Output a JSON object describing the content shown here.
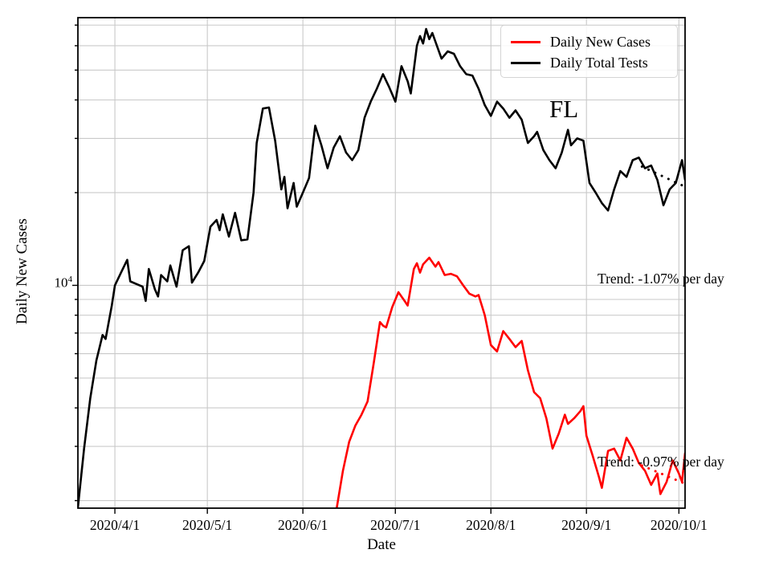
{
  "chart_data": {
    "type": "line",
    "title": "",
    "xlabel": "Date",
    "ylabel": "Daily New Cases",
    "yscale": "log",
    "grid": "both",
    "xlim": [
      "2020/3/20",
      "2020/10/3"
    ],
    "ylim": [
      1890,
      74000
    ],
    "y_tick": {
      "base": "10",
      "exp": "4",
      "value": 10000
    },
    "y_gridlines": [
      2000,
      3000,
      4000,
      5000,
      6000,
      7000,
      8000,
      9000,
      10000,
      20000,
      30000,
      40000,
      50000,
      60000,
      70000
    ],
    "x_ticks": [
      "2020/4/1",
      "2020/5/1",
      "2020/6/1",
      "2020/7/1",
      "2020/8/1",
      "2020/9/1",
      "2020/10/1"
    ],
    "legend": {
      "position": "upper right",
      "items": [
        {
          "label": "Daily New Cases",
          "color": "#ff0000"
        },
        {
          "label": "Daily Total Tests",
          "color": "#000000"
        }
      ]
    },
    "annotations": {
      "region": "FL",
      "tests_trend": "Trend: -1.07% per day",
      "cases_trend": "Trend: -0.97% per day"
    },
    "series": [
      {
        "name": "Daily Total Tests",
        "color": "#000000",
        "style": "solid",
        "points": [
          [
            "2020/3/20",
            1900
          ],
          [
            "2020/3/22",
            2950
          ],
          [
            "2020/3/24",
            4300
          ],
          [
            "2020/3/26",
            5700
          ],
          [
            "2020/3/28",
            6900
          ],
          [
            "2020/3/29",
            6700
          ],
          [
            "2020/3/31",
            8600
          ],
          [
            "2020/4/1",
            10000
          ],
          [
            "2020/4/3",
            11000
          ],
          [
            "2020/4/5",
            12100
          ],
          [
            "2020/4/6",
            10300
          ],
          [
            "2020/4/8",
            10100
          ],
          [
            "2020/4/10",
            9900
          ],
          [
            "2020/4/11",
            8900
          ],
          [
            "2020/4/12",
            11300
          ],
          [
            "2020/4/14",
            9700
          ],
          [
            "2020/4/15",
            9200
          ],
          [
            "2020/4/16",
            10800
          ],
          [
            "2020/4/18",
            10300
          ],
          [
            "2020/4/19",
            11600
          ],
          [
            "2020/4/21",
            9900
          ],
          [
            "2020/4/23",
            13000
          ],
          [
            "2020/4/25",
            13400
          ],
          [
            "2020/4/26",
            10200
          ],
          [
            "2020/4/28",
            11000
          ],
          [
            "2020/4/30",
            12000
          ],
          [
            "2020/5/2",
            15500
          ],
          [
            "2020/5/4",
            16300
          ],
          [
            "2020/5/5",
            15100
          ],
          [
            "2020/5/6",
            17000
          ],
          [
            "2020/5/8",
            14400
          ],
          [
            "2020/5/10",
            17200
          ],
          [
            "2020/5/12",
            14000
          ],
          [
            "2020/5/14",
            14100
          ],
          [
            "2020/5/16",
            20000
          ],
          [
            "2020/5/17",
            29000
          ],
          [
            "2020/5/19",
            37500
          ],
          [
            "2020/5/21",
            37800
          ],
          [
            "2020/5/23",
            29500
          ],
          [
            "2020/5/25",
            20500
          ],
          [
            "2020/5/26",
            22500
          ],
          [
            "2020/5/27",
            17800
          ],
          [
            "2020/5/29",
            21500
          ],
          [
            "2020/5/30",
            18000
          ],
          [
            "2020/6/1",
            20000
          ],
          [
            "2020/6/3",
            22300
          ],
          [
            "2020/6/5",
            33000
          ],
          [
            "2020/6/7",
            28500
          ],
          [
            "2020/6/9",
            24000
          ],
          [
            "2020/6/11",
            28000
          ],
          [
            "2020/6/13",
            30500
          ],
          [
            "2020/6/15",
            27000
          ],
          [
            "2020/6/17",
            25500
          ],
          [
            "2020/6/19",
            27500
          ],
          [
            "2020/6/21",
            35000
          ],
          [
            "2020/6/23",
            39500
          ],
          [
            "2020/6/25",
            43500
          ],
          [
            "2020/6/27",
            48500
          ],
          [
            "2020/6/29",
            44000
          ],
          [
            "2020/7/1",
            39500
          ],
          [
            "2020/7/3",
            51500
          ],
          [
            "2020/7/5",
            46000
          ],
          [
            "2020/7/6",
            42000
          ],
          [
            "2020/7/8",
            60000
          ],
          [
            "2020/7/9",
            64500
          ],
          [
            "2020/7/10",
            61000
          ],
          [
            "2020/7/11",
            68000
          ],
          [
            "2020/7/12",
            63000
          ],
          [
            "2020/7/13",
            66000
          ],
          [
            "2020/7/15",
            58000
          ],
          [
            "2020/7/16",
            54500
          ],
          [
            "2020/7/18",
            57500
          ],
          [
            "2020/7/20",
            56500
          ],
          [
            "2020/7/22",
            51500
          ],
          [
            "2020/7/24",
            48500
          ],
          [
            "2020/7/26",
            48000
          ],
          [
            "2020/7/28",
            43500
          ],
          [
            "2020/7/30",
            38500
          ],
          [
            "2020/8/1",
            35500
          ],
          [
            "2020/8/3",
            39500
          ],
          [
            "2020/8/5",
            37500
          ],
          [
            "2020/8/7",
            35000
          ],
          [
            "2020/8/9",
            37000
          ],
          [
            "2020/8/11",
            34500
          ],
          [
            "2020/8/13",
            29000
          ],
          [
            "2020/8/15",
            30500
          ],
          [
            "2020/8/16",
            31500
          ],
          [
            "2020/8/18",
            27500
          ],
          [
            "2020/8/20",
            25500
          ],
          [
            "2020/8/22",
            24000
          ],
          [
            "2020/8/24",
            27000
          ],
          [
            "2020/8/26",
            32000
          ],
          [
            "2020/8/27",
            28500
          ],
          [
            "2020/8/29",
            30000
          ],
          [
            "2020/8/31",
            29500
          ],
          [
            "2020/9/2",
            21500
          ],
          [
            "2020/9/4",
            20000
          ],
          [
            "2020/9/6",
            18500
          ],
          [
            "2020/9/8",
            17500
          ],
          [
            "2020/9/10",
            20500
          ],
          [
            "2020/9/12",
            23500
          ],
          [
            "2020/9/14",
            22500
          ],
          [
            "2020/9/16",
            25500
          ],
          [
            "2020/9/18",
            26000
          ],
          [
            "2020/9/20",
            24000
          ],
          [
            "2020/9/22",
            24500
          ],
          [
            "2020/9/24",
            22000
          ],
          [
            "2020/9/26",
            18200
          ],
          [
            "2020/9/28",
            20500
          ],
          [
            "2020/9/30",
            21500
          ],
          [
            "2020/10/2",
            25500
          ],
          [
            "2020/10/3",
            22000
          ]
        ]
      },
      {
        "name": "Daily New Cases",
        "color": "#ff0000",
        "style": "solid",
        "points": [
          [
            "2020/6/12",
            1900
          ],
          [
            "2020/6/14",
            2500
          ],
          [
            "2020/6/16",
            3100
          ],
          [
            "2020/6/18",
            3500
          ],
          [
            "2020/6/20",
            3800
          ],
          [
            "2020/6/22",
            4200
          ],
          [
            "2020/6/24",
            5600
          ],
          [
            "2020/6/26",
            7600
          ],
          [
            "2020/6/27",
            7400
          ],
          [
            "2020/6/28",
            7300
          ],
          [
            "2020/6/30",
            8500
          ],
          [
            "2020/7/2",
            9500
          ],
          [
            "2020/7/4",
            8900
          ],
          [
            "2020/7/5",
            8600
          ],
          [
            "2020/7/7",
            11300
          ],
          [
            "2020/7/8",
            11800
          ],
          [
            "2020/7/9",
            11000
          ],
          [
            "2020/7/10",
            11700
          ],
          [
            "2020/7/12",
            12300
          ],
          [
            "2020/7/14",
            11500
          ],
          [
            "2020/7/15",
            11900
          ],
          [
            "2020/7/17",
            10800
          ],
          [
            "2020/7/19",
            10900
          ],
          [
            "2020/7/21",
            10700
          ],
          [
            "2020/7/23",
            10000
          ],
          [
            "2020/7/25",
            9400
          ],
          [
            "2020/7/27",
            9200
          ],
          [
            "2020/7/28",
            9300
          ],
          [
            "2020/7/30",
            8000
          ],
          [
            "2020/8/1",
            6400
          ],
          [
            "2020/8/3",
            6100
          ],
          [
            "2020/8/5",
            7100
          ],
          [
            "2020/8/7",
            6700
          ],
          [
            "2020/8/9",
            6300
          ],
          [
            "2020/8/11",
            6600
          ],
          [
            "2020/8/13",
            5300
          ],
          [
            "2020/8/15",
            4500
          ],
          [
            "2020/8/17",
            4300
          ],
          [
            "2020/8/19",
            3700
          ],
          [
            "2020/8/21",
            2950
          ],
          [
            "2020/8/23",
            3300
          ],
          [
            "2020/8/25",
            3800
          ],
          [
            "2020/8/26",
            3550
          ],
          [
            "2020/8/28",
            3700
          ],
          [
            "2020/8/30",
            3900
          ],
          [
            "2020/8/31",
            4050
          ],
          [
            "2020/9/1",
            3250
          ],
          [
            "2020/9/3",
            2800
          ],
          [
            "2020/9/5",
            2400
          ],
          [
            "2020/9/6",
            2200
          ],
          [
            "2020/9/8",
            2900
          ],
          [
            "2020/9/10",
            2950
          ],
          [
            "2020/9/12",
            2700
          ],
          [
            "2020/9/14",
            3200
          ],
          [
            "2020/9/16",
            2950
          ],
          [
            "2020/9/18",
            2650
          ],
          [
            "2020/9/20",
            2500
          ],
          [
            "2020/9/22",
            2250
          ],
          [
            "2020/9/24",
            2450
          ],
          [
            "2020/9/25",
            2100
          ],
          [
            "2020/9/27",
            2300
          ],
          [
            "2020/9/29",
            2700
          ],
          [
            "2020/10/1",
            2450
          ],
          [
            "2020/10/2",
            2300
          ],
          [
            "2020/10/3",
            2850
          ]
        ]
      },
      {
        "name": "Tests trend (-1.07% per day)",
        "color": "#000000",
        "style": "dotted",
        "points": [
          [
            "2020/9/19",
            24300
          ],
          [
            "2020/10/3",
            20900
          ]
        ]
      },
      {
        "name": "Cases trend (-0.97% per day)",
        "color": "#ff0000",
        "style": "dotted",
        "points": [
          [
            "2020/9/19",
            2600
          ],
          [
            "2020/10/3",
            2270
          ]
        ]
      }
    ]
  }
}
